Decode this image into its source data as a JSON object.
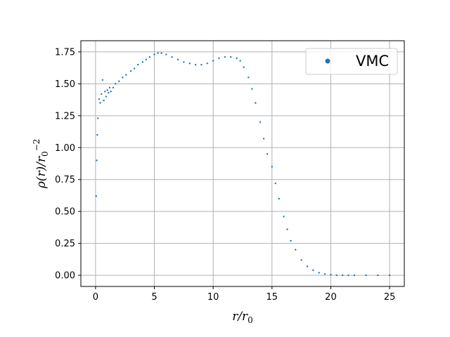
{
  "chart_data": {
    "type": "scatter",
    "title": "",
    "xlabel": "r/r0",
    "ylabel": "ρ(r)/r0^-2",
    "xlim": [
      -1.25,
      26.25
    ],
    "ylim": [
      -0.0875,
      1.8375
    ],
    "xticks": [
      0,
      5,
      10,
      15,
      20,
      25
    ],
    "yticks": [
      0.0,
      0.25,
      0.5,
      0.75,
      1.0,
      1.25,
      1.5,
      1.75
    ],
    "xtick_labels": [
      "0",
      "5",
      "10",
      "15",
      "20",
      "25"
    ],
    "ytick_labels": [
      "0.00",
      "0.25",
      "0.50",
      "0.75",
      "1.00",
      "1.25",
      "1.50",
      "1.75"
    ],
    "grid": true,
    "legend_position": "upper right",
    "color": "#1f77b4",
    "series": [
      {
        "name": "VMC",
        "x": [
          0.05,
          0.1,
          0.15,
          0.2,
          0.3,
          0.4,
          0.5,
          0.6,
          0.7,
          0.8,
          0.9,
          1.0,
          1.1,
          1.2,
          1.3,
          1.5,
          1.7,
          2.0,
          2.3,
          2.6,
          3.0,
          3.3,
          3.6,
          4.0,
          4.3,
          4.6,
          5.0,
          5.3,
          5.6,
          6.0,
          6.5,
          7.0,
          7.5,
          8.0,
          8.5,
          9.0,
          9.5,
          10.0,
          10.5,
          11.0,
          11.5,
          12.0,
          12.3,
          12.6,
          13.0,
          13.3,
          13.6,
          14.0,
          14.3,
          14.6,
          15.0,
          15.3,
          15.6,
          16.0,
          16.3,
          16.6,
          17.0,
          17.5,
          18.0,
          18.5,
          19.0,
          19.5,
          20.0,
          20.5,
          21.0,
          21.5,
          22.0,
          23.0,
          24.0,
          25.0
        ],
        "y": [
          0.62,
          0.9,
          1.1,
          1.23,
          1.38,
          1.35,
          1.42,
          1.53,
          1.37,
          1.44,
          1.4,
          1.45,
          1.43,
          1.47,
          1.44,
          1.47,
          1.5,
          1.52,
          1.55,
          1.57,
          1.6,
          1.62,
          1.65,
          1.67,
          1.69,
          1.71,
          1.73,
          1.74,
          1.74,
          1.73,
          1.71,
          1.69,
          1.67,
          1.66,
          1.65,
          1.65,
          1.66,
          1.68,
          1.7,
          1.71,
          1.71,
          1.7,
          1.68,
          1.63,
          1.55,
          1.46,
          1.35,
          1.2,
          1.07,
          0.95,
          0.85,
          0.72,
          0.6,
          0.46,
          0.36,
          0.27,
          0.2,
          0.12,
          0.07,
          0.04,
          0.02,
          0.01,
          0.005,
          0.0,
          0.0,
          0.0,
          0.0,
          0.0,
          0.0,
          0.0
        ]
      }
    ]
  }
}
